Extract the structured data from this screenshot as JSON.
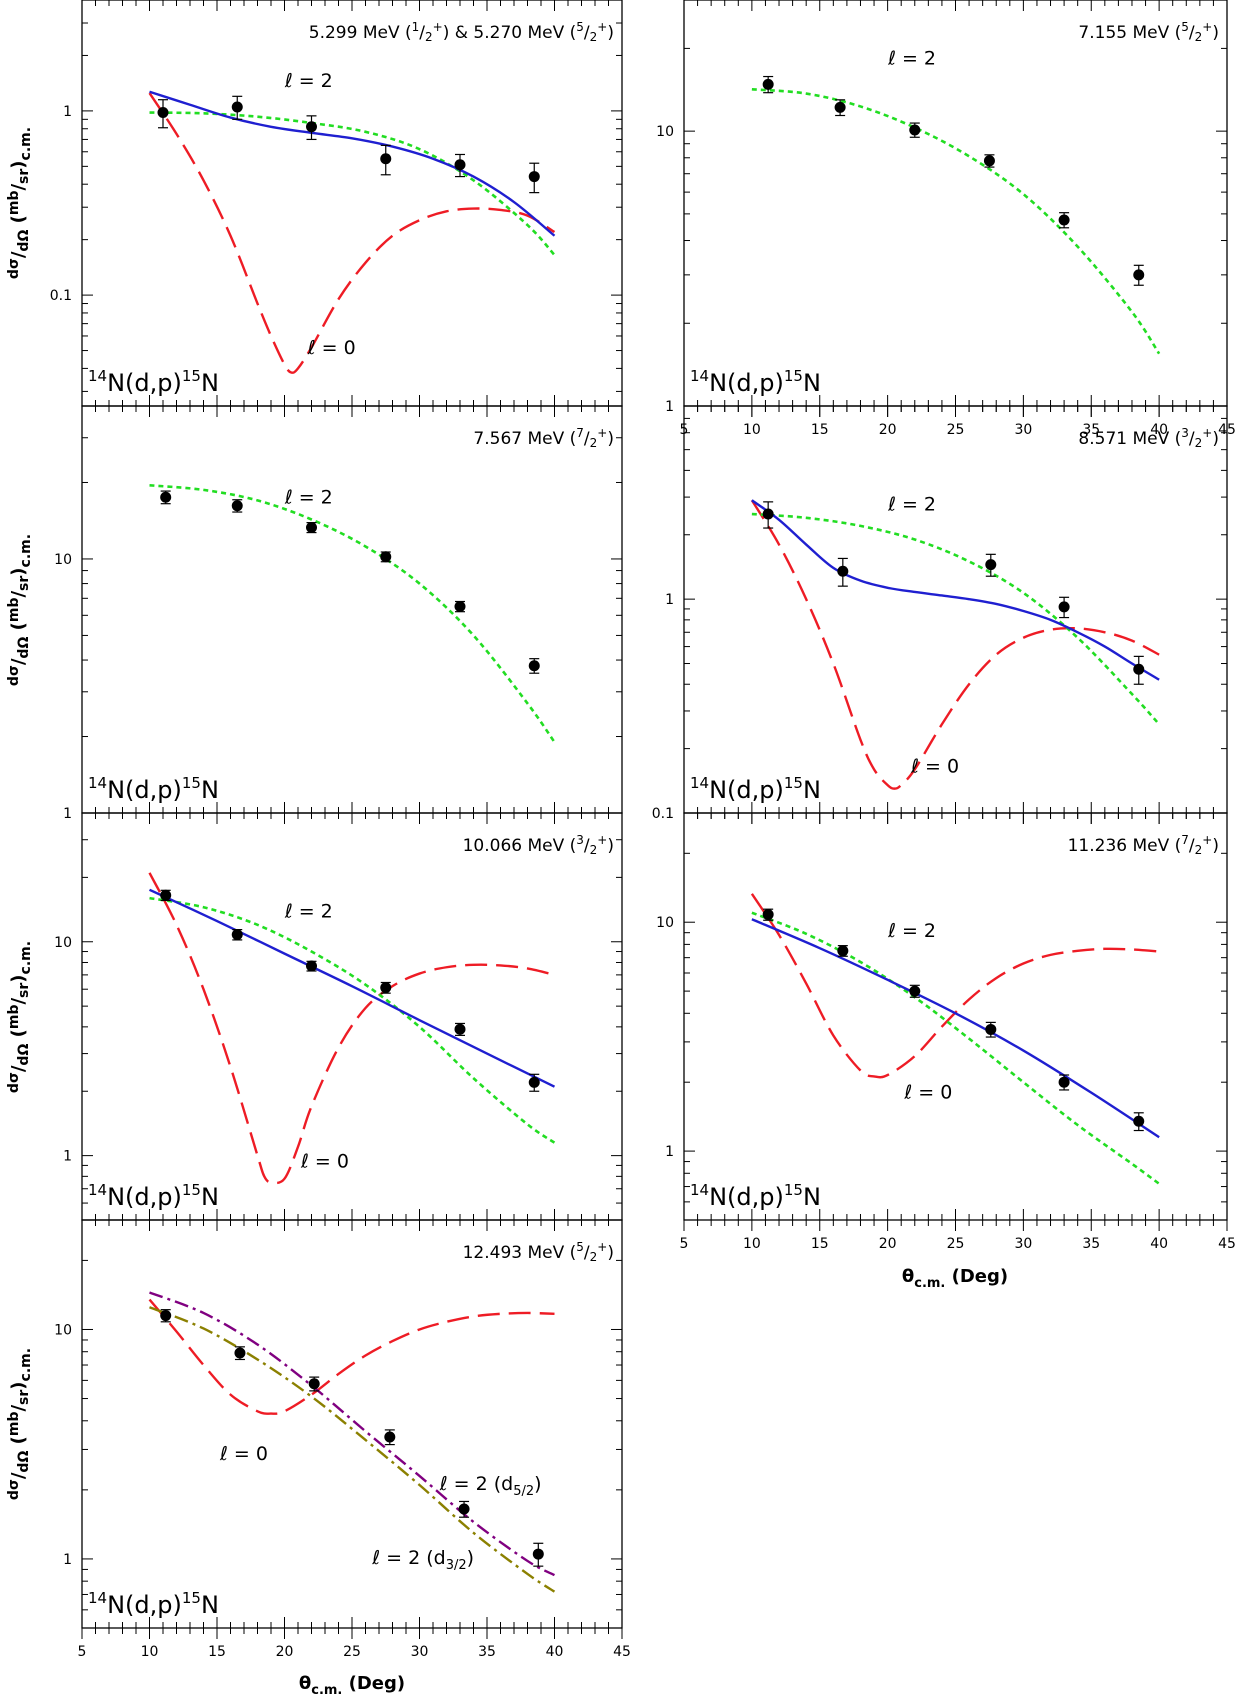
{
  "figure": {
    "reaction_label": {
      "pre": "14",
      "mid": "N(d,p)",
      "sup2": "15",
      "post": "N"
    },
    "xaxis_title": {
      "main": "θ",
      "sub": "c.m.",
      "rest": " (Deg)"
    },
    "yaxis_title": {
      "frac1_num": "dσ",
      "frac1_den": "dΩ",
      "frac2_num": "mb",
      "frac2_den": "sr",
      "sub": "c.m."
    },
    "colors": {
      "l0": "#ee1c25",
      "l2": "#22dd22",
      "fit": "#1f1fd0",
      "d52": "#800080",
      "d32": "#8b8000",
      "data": "#000000"
    }
  },
  "chart_data": [
    {
      "type": "scatter",
      "panel": "a",
      "title": {
        "energy": "5.299 MeV (",
        "j1n": "1",
        "j1d": "2",
        "p1": "+",
        "mid": ") & 5.270 MeV (",
        "j2n": "5",
        "j2d": "2",
        "p2": "+",
        "end": ")"
      },
      "xlim": [
        5,
        45
      ],
      "ylim": [
        0.025,
        4
      ],
      "ylog": true,
      "yticks": [
        {
          "v": 0.1,
          "label": "0.1"
        },
        {
          "v": 1,
          "label": "1"
        }
      ],
      "xticks": [
        5,
        10,
        15,
        20,
        25,
        30,
        35,
        40,
        45
      ],
      "x_tick_labels": false,
      "points": [
        {
          "x": 11.0,
          "y": 0.98,
          "err": 0.17
        },
        {
          "x": 16.5,
          "y": 1.05,
          "err": 0.15
        },
        {
          "x": 22.0,
          "y": 0.82,
          "err": 0.12
        },
        {
          "x": 27.5,
          "y": 0.55,
          "err": 0.1
        },
        {
          "x": 33.0,
          "y": 0.51,
          "err": 0.07
        },
        {
          "x": 38.5,
          "y": 0.44,
          "err": 0.08
        }
      ],
      "series": [
        {
          "kind": "l0",
          "style": "dash",
          "x": [
            10,
            12,
            14,
            16,
            18,
            19,
            20,
            20.5,
            21,
            22,
            24,
            26,
            28,
            30,
            32,
            34,
            36,
            38,
            40
          ],
          "y": [
            1.25,
            0.75,
            0.42,
            0.21,
            0.09,
            0.06,
            0.042,
            0.038,
            0.04,
            0.052,
            0.095,
            0.15,
            0.21,
            0.255,
            0.285,
            0.295,
            0.29,
            0.27,
            0.22
          ]
        },
        {
          "kind": "l2",
          "style": "dot",
          "x": [
            10,
            14,
            18,
            22,
            26,
            30,
            34,
            38,
            40
          ],
          "y": [
            0.98,
            0.97,
            0.93,
            0.86,
            0.77,
            0.62,
            0.42,
            0.24,
            0.165
          ]
        },
        {
          "kind": "fit",
          "style": "solid",
          "x": [
            10,
            13,
            16,
            19,
            22,
            25,
            28,
            31,
            34,
            37,
            40
          ],
          "y": [
            1.27,
            1.08,
            0.92,
            0.82,
            0.76,
            0.71,
            0.64,
            0.55,
            0.44,
            0.32,
            0.21
          ]
        }
      ],
      "annotations": [
        {
          "x": 21.8,
          "y": 1.35,
          "text": "ℓ = 2"
        },
        {
          "x": 23.5,
          "y": 0.048,
          "text": "ℓ = 0"
        }
      ]
    },
    {
      "type": "scatter",
      "panel": "b",
      "title": {
        "energy": "7.155 MeV (",
        "j1n": "5",
        "j1d": "2",
        "p1": "+",
        "end": ")"
      },
      "xlim": [
        5,
        45
      ],
      "ylim": [
        1,
        30
      ],
      "ylog": true,
      "yticks": [
        {
          "v": 1,
          "label": "1"
        },
        {
          "v": 10,
          "label": "10"
        }
      ],
      "xticks": [
        5,
        10,
        15,
        20,
        25,
        30,
        35,
        40,
        45
      ],
      "x_tick_labels": true,
      "points": [
        {
          "x": 11.2,
          "y": 14.8,
          "err": 1.0
        },
        {
          "x": 16.5,
          "y": 12.2,
          "err": 0.8
        },
        {
          "x": 22.0,
          "y": 10.1,
          "err": 0.6
        },
        {
          "x": 27.5,
          "y": 7.8,
          "err": 0.4
        },
        {
          "x": 33.0,
          "y": 4.75,
          "err": 0.3
        },
        {
          "x": 38.5,
          "y": 3.0,
          "err": 0.25
        }
      ],
      "series": [
        {
          "kind": "l2",
          "style": "dot",
          "x": [
            10,
            14,
            18,
            22,
            26,
            30,
            34,
            38,
            40
          ],
          "y": [
            14.2,
            13.7,
            12.3,
            10.3,
            8.1,
            5.9,
            3.8,
            2.2,
            1.55
          ]
        }
      ],
      "annotations": [
        {
          "x": 21.8,
          "y": 17.5,
          "text": "ℓ = 2"
        }
      ]
    },
    {
      "type": "scatter",
      "panel": "c",
      "title": {
        "energy": "7.567 MeV (",
        "j1n": "7",
        "j1d": "2",
        "p1": "+",
        "end": ")"
      },
      "xlim": [
        5,
        45
      ],
      "ylim": [
        1,
        40
      ],
      "ylog": true,
      "yticks": [
        {
          "v": 1,
          "label": "1"
        },
        {
          "v": 10,
          "label": "10"
        }
      ],
      "xticks": [
        5,
        10,
        15,
        20,
        25,
        30,
        35,
        40,
        45
      ],
      "x_tick_labels": false,
      "points": [
        {
          "x": 11.2,
          "y": 17.5,
          "err": 1.0
        },
        {
          "x": 16.5,
          "y": 16.2,
          "err": 0.9
        },
        {
          "x": 22.0,
          "y": 13.3,
          "err": 0.6
        },
        {
          "x": 27.5,
          "y": 10.2,
          "err": 0.45
        },
        {
          "x": 33.0,
          "y": 6.5,
          "err": 0.3
        },
        {
          "x": 38.5,
          "y": 3.8,
          "err": 0.25
        }
      ],
      "series": [
        {
          "kind": "l2",
          "style": "dot",
          "x": [
            10,
            14,
            18,
            22,
            26,
            30,
            34,
            38,
            40
          ],
          "y": [
            19.5,
            18.7,
            17.0,
            14.3,
            11.2,
            8.0,
            5.0,
            2.7,
            1.9
          ]
        }
      ],
      "annotations": [
        {
          "x": 21.8,
          "y": 16.5,
          "text": "ℓ = 2"
        }
      ]
    },
    {
      "type": "scatter",
      "panel": "d",
      "title": {
        "energy": "8.571 MeV (",
        "j1n": "3",
        "j1d": "2",
        "p1": "+",
        "end": ")"
      },
      "xlim": [
        5,
        45
      ],
      "ylim": [
        0.1,
        8
      ],
      "ylog": true,
      "yticks": [
        {
          "v": 0.1,
          "label": "0.1"
        },
        {
          "v": 1,
          "label": "1"
        }
      ],
      "xticks": [
        5,
        10,
        15,
        20,
        25,
        30,
        35,
        40,
        45
      ],
      "x_tick_labels": false,
      "points": [
        {
          "x": 11.2,
          "y": 2.5,
          "err": 0.35
        },
        {
          "x": 16.7,
          "y": 1.35,
          "err": 0.2
        },
        {
          "x": 27.6,
          "y": 1.45,
          "err": 0.17
        },
        {
          "x": 33.0,
          "y": 0.92,
          "err": 0.1
        },
        {
          "x": 38.5,
          "y": 0.47,
          "err": 0.07
        }
      ],
      "series": [
        {
          "kind": "l0",
          "style": "dash",
          "x": [
            10,
            12,
            14,
            16,
            18,
            19,
            20,
            20.5,
            21,
            22,
            24,
            26,
            28,
            30,
            32,
            34,
            36,
            38,
            40
          ],
          "y": [
            2.9,
            1.8,
            1.0,
            0.5,
            0.22,
            0.16,
            0.135,
            0.13,
            0.135,
            0.16,
            0.26,
            0.4,
            0.55,
            0.66,
            0.72,
            0.73,
            0.7,
            0.64,
            0.55
          ]
        },
        {
          "kind": "l2",
          "style": "dot",
          "x": [
            10,
            14,
            18,
            22,
            26,
            30,
            34,
            38,
            40
          ],
          "y": [
            2.5,
            2.4,
            2.2,
            1.9,
            1.5,
            1.07,
            0.66,
            0.36,
            0.26
          ]
        },
        {
          "kind": "fit",
          "style": "solid",
          "x": [
            10,
            12,
            14,
            16,
            18,
            20,
            22,
            24,
            26,
            28,
            30,
            32,
            34,
            36,
            38,
            40
          ],
          "y": [
            2.9,
            2.35,
            1.8,
            1.4,
            1.22,
            1.13,
            1.08,
            1.04,
            1.0,
            0.95,
            0.88,
            0.8,
            0.7,
            0.6,
            0.5,
            0.42
          ]
        }
      ],
      "annotations": [
        {
          "x": 21.8,
          "y": 2.6,
          "text": "ℓ = 2"
        },
        {
          "x": 23.5,
          "y": 0.155,
          "text": "ℓ = 0"
        }
      ]
    },
    {
      "type": "scatter",
      "panel": "e",
      "title": {
        "energy": "10.066 MeV (",
        "j1n": "3",
        "j1d": "2",
        "p1": "+",
        "end": ")"
      },
      "xlim": [
        5,
        45
      ],
      "ylim": [
        0.5,
        40
      ],
      "ylog": true,
      "yticks": [
        {
          "v": 1,
          "label": "1"
        },
        {
          "v": 10,
          "label": "10"
        }
      ],
      "xticks": [
        5,
        10,
        15,
        20,
        25,
        30,
        35,
        40,
        45
      ],
      "x_tick_labels": false,
      "points": [
        {
          "x": 11.2,
          "y": 16.5,
          "err": 0.9
        },
        {
          "x": 16.5,
          "y": 10.8,
          "err": 0.6
        },
        {
          "x": 22.0,
          "y": 7.7,
          "err": 0.4
        },
        {
          "x": 27.5,
          "y": 6.1,
          "err": 0.35
        },
        {
          "x": 33.0,
          "y": 3.9,
          "err": 0.25
        },
        {
          "x": 38.5,
          "y": 2.2,
          "err": 0.2
        }
      ],
      "series": [
        {
          "kind": "l0",
          "style": "dash",
          "x": [
            10,
            12,
            14,
            16,
            18,
            18.5,
            19,
            20,
            21,
            22,
            24,
            26,
            28,
            30,
            32,
            34,
            36,
            38,
            40
          ],
          "y": [
            21.0,
            12.0,
            6.0,
            2.6,
            1.0,
            0.8,
            0.75,
            0.78,
            1.1,
            1.7,
            3.2,
            4.9,
            6.2,
            7.1,
            7.6,
            7.8,
            7.75,
            7.5,
            7.0
          ]
        },
        {
          "kind": "l2",
          "style": "dot",
          "x": [
            10,
            14,
            18,
            22,
            26,
            30,
            34,
            38,
            40
          ],
          "y": [
            16.0,
            14.5,
            12.0,
            9.0,
            6.3,
            4.0,
            2.3,
            1.4,
            1.15
          ]
        },
        {
          "kind": "fit",
          "style": "solid",
          "x": [
            10,
            15,
            20,
            25,
            30,
            35,
            40
          ],
          "y": [
            17.5,
            12.5,
            8.8,
            6.2,
            4.3,
            3.0,
            2.1
          ]
        }
      ],
      "annotations": [
        {
          "x": 21.8,
          "y": 13.0,
          "text": "ℓ = 2"
        },
        {
          "x": 23.0,
          "y": 0.88,
          "text": "ℓ = 0"
        }
      ]
    },
    {
      "type": "scatter",
      "panel": "f",
      "title": {
        "energy": "11.236 MeV (",
        "j1n": "7",
        "j1d": "2",
        "p1": "+",
        "end": ")"
      },
      "xlim": [
        5,
        45
      ],
      "ylim": [
        0.5,
        30
      ],
      "ylog": true,
      "yticks": [
        {
          "v": 1,
          "label": "1"
        },
        {
          "v": 10,
          "label": "10"
        }
      ],
      "xticks": [
        5,
        10,
        15,
        20,
        25,
        30,
        35,
        40,
        45
      ],
      "x_tick_labels": true,
      "points": [
        {
          "x": 11.2,
          "y": 10.8,
          "err": 0.6
        },
        {
          "x": 16.7,
          "y": 7.5,
          "err": 0.4
        },
        {
          "x": 22.0,
          "y": 5.0,
          "err": 0.3
        },
        {
          "x": 27.6,
          "y": 3.4,
          "err": 0.25
        },
        {
          "x": 33.0,
          "y": 2.0,
          "err": 0.15
        },
        {
          "x": 38.5,
          "y": 1.35,
          "err": 0.12
        }
      ],
      "series": [
        {
          "kind": "l0",
          "style": "dash",
          "x": [
            10,
            12,
            14,
            16,
            18,
            19,
            20,
            22,
            24,
            26,
            28,
            30,
            32,
            34,
            36,
            38,
            40
          ],
          "y": [
            13.3,
            8.8,
            5.4,
            3.2,
            2.25,
            2.12,
            2.15,
            2.6,
            3.5,
            4.6,
            5.7,
            6.6,
            7.2,
            7.5,
            7.65,
            7.6,
            7.45
          ]
        },
        {
          "kind": "l2",
          "style": "dot",
          "x": [
            10,
            14,
            18,
            22,
            26,
            30,
            34,
            38,
            40
          ],
          "y": [
            11.0,
            8.9,
            6.7,
            4.7,
            3.1,
            2.0,
            1.3,
            0.88,
            0.72
          ]
        },
        {
          "kind": "fit",
          "style": "solid",
          "x": [
            10,
            15,
            20,
            25,
            30,
            35,
            40
          ],
          "y": [
            10.3,
            7.7,
            5.6,
            4.0,
            2.75,
            1.8,
            1.15
          ]
        }
      ],
      "annotations": [
        {
          "x": 21.8,
          "y": 8.6,
          "text": "ℓ = 2"
        },
        {
          "x": 23.0,
          "y": 1.7,
          "text": "ℓ = 0"
        }
      ]
    },
    {
      "type": "scatter",
      "panel": "g",
      "title": {
        "energy": "12.493 MeV (",
        "j1n": "5",
        "j1d": "2",
        "p1": "+",
        "end": ")"
      },
      "xlim": [
        5,
        45
      ],
      "ylim": [
        0.5,
        30
      ],
      "ylog": true,
      "yticks": [
        {
          "v": 1,
          "label": "1"
        },
        {
          "v": 10,
          "label": "10"
        }
      ],
      "xticks": [
        5,
        10,
        15,
        20,
        25,
        30,
        35,
        40,
        45
      ],
      "x_tick_labels": true,
      "points": [
        {
          "x": 11.2,
          "y": 11.5,
          "err": 0.7
        },
        {
          "x": 16.7,
          "y": 7.9,
          "err": 0.5
        },
        {
          "x": 22.2,
          "y": 5.8,
          "err": 0.4
        },
        {
          "x": 27.8,
          "y": 3.4,
          "err": 0.25
        },
        {
          "x": 33.3,
          "y": 1.65,
          "err": 0.13
        },
        {
          "x": 38.8,
          "y": 1.05,
          "err": 0.12
        }
      ],
      "series": [
        {
          "kind": "l0",
          "style": "dash",
          "x": [
            10,
            12,
            14,
            16,
            18,
            19,
            20,
            22,
            24,
            26,
            28,
            30,
            32,
            34,
            36,
            38,
            40
          ],
          "y": [
            13.5,
            9.8,
            7.0,
            5.2,
            4.4,
            4.3,
            4.4,
            5.2,
            6.4,
            7.7,
            8.9,
            10.0,
            10.8,
            11.4,
            11.7,
            11.8,
            11.7
          ]
        },
        {
          "kind": "d52",
          "style": "dashdot",
          "x": [
            10,
            14,
            18,
            22,
            26,
            30,
            34,
            38,
            40
          ],
          "y": [
            14.5,
            11.8,
            8.6,
            5.7,
            3.6,
            2.3,
            1.45,
            0.98,
            0.85
          ]
        },
        {
          "kind": "d32",
          "style": "dashdot",
          "x": [
            10,
            14,
            18,
            22,
            26,
            30,
            34,
            38,
            40
          ],
          "y": [
            12.5,
            10.1,
            7.4,
            5.1,
            3.3,
            2.1,
            1.3,
            0.86,
            0.72
          ]
        }
      ],
      "annotations": [
        {
          "x": 17.0,
          "y": 2.7,
          "text": "ℓ = 0"
        }
      ],
      "sub_annotations": [
        {
          "x": 31.5,
          "y": 2.0,
          "text": "ℓ = 2 (d",
          "sub": "5/2",
          "tail": ")"
        },
        {
          "x": 26.5,
          "y": 0.95,
          "text": "ℓ = 2 (d",
          "sub": "3/2",
          "tail": ")"
        }
      ]
    }
  ]
}
